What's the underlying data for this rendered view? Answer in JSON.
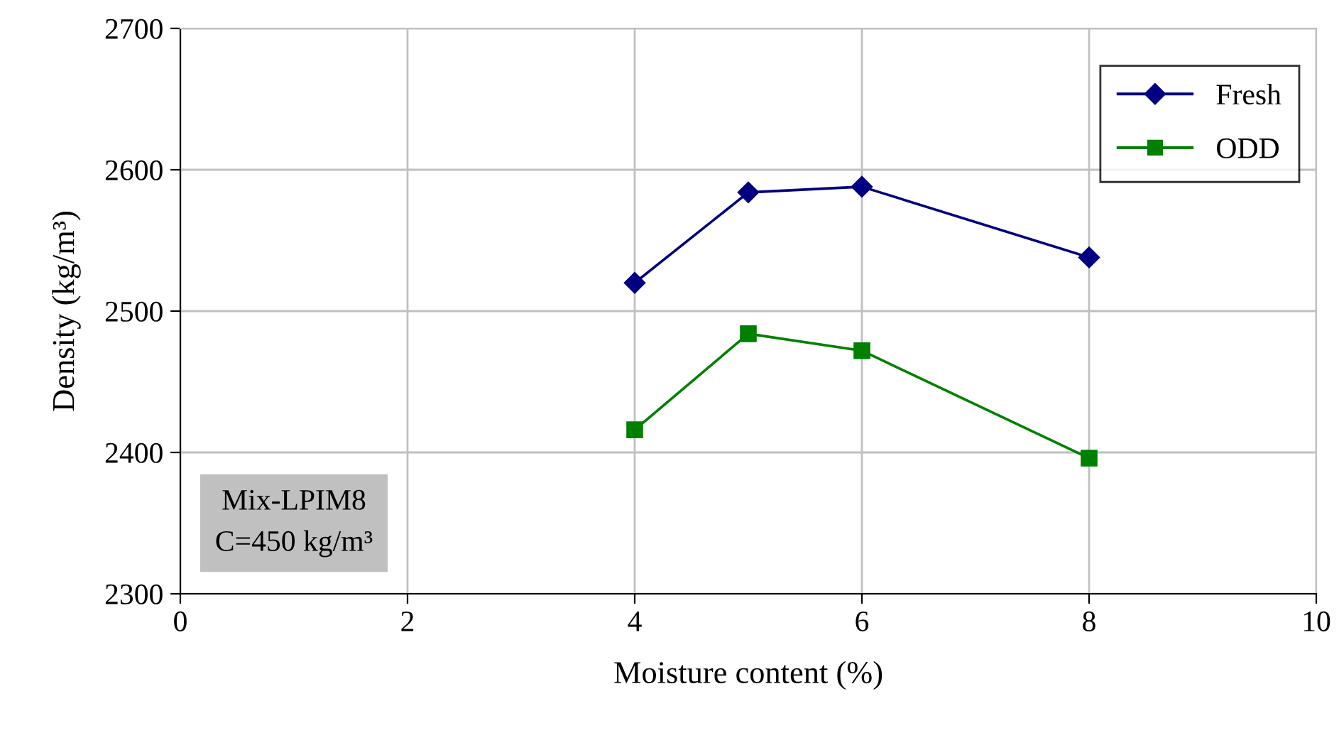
{
  "chart_data": {
    "type": "line",
    "xlabel": "Moisture content (%)",
    "ylabel": "Density (kg/m³)",
    "x": [
      4,
      5,
      6,
      8
    ],
    "series": [
      {
        "name": "Fresh",
        "color": "#000080",
        "values": [
          2520,
          2584,
          2588,
          2538
        ],
        "marker": "diamond"
      },
      {
        "name": "ODD",
        "color": "#008000",
        "values": [
          2416,
          2484,
          2472,
          2396
        ],
        "marker": "square"
      }
    ],
    "xlim": [
      0,
      10
    ],
    "xticks": [
      0,
      2,
      4,
      6,
      8,
      10
    ],
    "ylim": [
      2300,
      2700
    ],
    "yticks": [
      2300,
      2400,
      2500,
      2600,
      2700
    ],
    "grid": true,
    "legend": "top right",
    "line_style": "solid",
    "annotations": [
      "Mix-LPIM8\nC=450 kg/m³"
    ]
  }
}
